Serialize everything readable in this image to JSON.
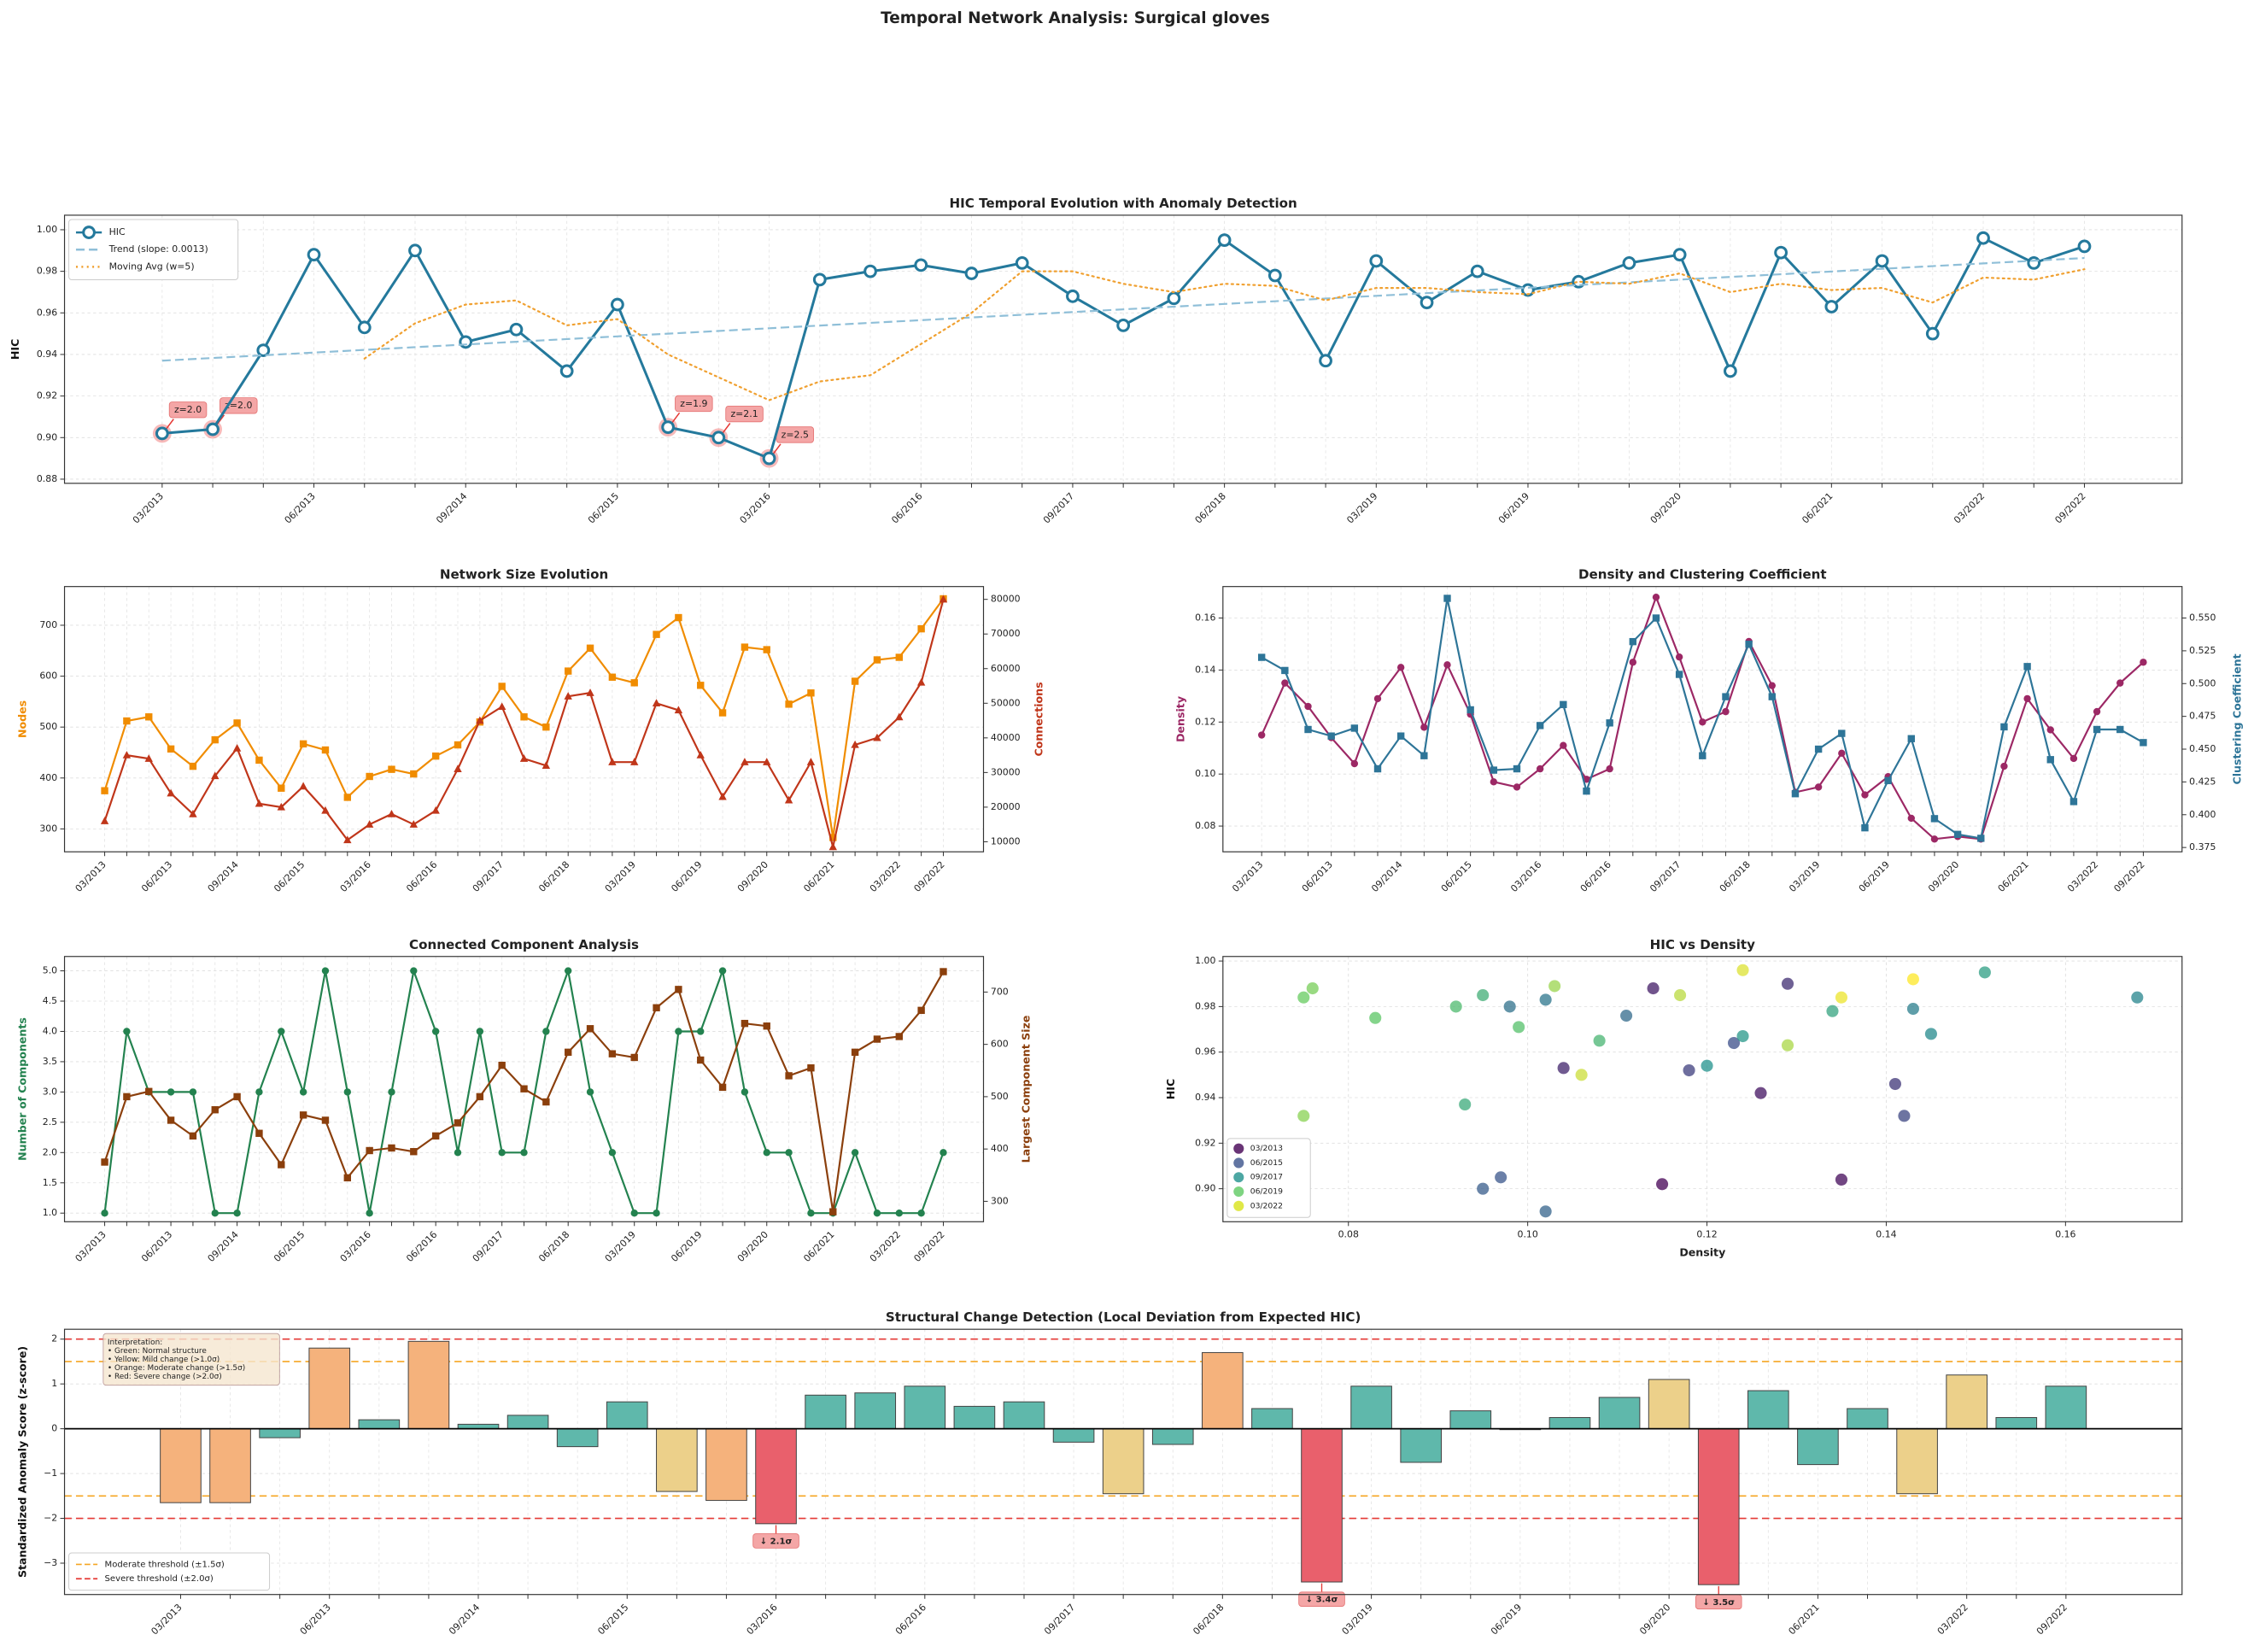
{
  "chart_data": [
    {
      "type": "line",
      "title": "HIC Temporal Evolution with Anomaly Detection",
      "suptitle": "Temporal Network Analysis: Surgical gloves",
      "ylabel": "HIC",
      "categories": [
        "03/2013",
        null,
        null,
        "06/2013",
        null,
        null,
        "09/2014",
        null,
        null,
        "06/2015",
        null,
        null,
        "03/2016",
        null,
        null,
        "06/2016",
        null,
        null,
        "09/2017",
        null,
        null,
        "06/2018",
        null,
        null,
        "03/2019",
        null,
        null,
        "06/2019",
        null,
        null,
        "09/2020",
        null,
        null,
        "06/2021",
        null,
        null,
        "03/2022",
        null,
        "09/2022"
      ],
      "ylim": [
        0.878,
        1.007
      ],
      "yticks": [
        0.88,
        {
          "value": 0.9,
          "label": "0.90"
        },
        0.92,
        0.94,
        0.96,
        0.98,
        {
          "value": 1.0,
          "label": "1.00"
        }
      ],
      "grid": true,
      "legend": "upper left",
      "series": [
        {
          "name": "HIC",
          "color": "#24799c",
          "linestyle": "solid",
          "marker": "hollow-circle",
          "values": [
            0.902,
            0.904,
            0.942,
            0.988,
            0.953,
            0.99,
            0.946,
            0.952,
            0.932,
            0.964,
            0.905,
            0.9,
            0.89,
            0.976,
            0.98,
            0.983,
            0.979,
            0.984,
            0.968,
            0.954,
            0.967,
            0.995,
            0.978,
            0.937,
            0.985,
            0.965,
            0.98,
            0.971,
            0.975,
            0.984,
            0.988,
            0.932,
            0.989,
            0.963,
            0.985,
            0.95,
            0.996,
            0.984,
            0.992
          ]
        },
        {
          "name": "Trend (slope: 0.0013)",
          "color": "#8fbfd8",
          "linestyle": "dashed",
          "marker": null,
          "values": [
            0.937,
            0.9383,
            0.9396,
            0.9409,
            0.9422,
            0.9435,
            0.9448,
            0.9461,
            0.9474,
            0.9487,
            0.95,
            0.9513,
            0.9526,
            0.9539,
            0.9552,
            0.9565,
            0.9578,
            0.9591,
            0.9604,
            0.9617,
            0.963,
            0.9643,
            0.9656,
            0.9669,
            0.9682,
            0.9695,
            0.9708,
            0.9721,
            0.9734,
            0.9747,
            0.976,
            0.9773,
            0.9786,
            0.9799,
            0.9812,
            0.9825,
            0.9838,
            0.9851,
            0.9864
          ]
        },
        {
          "name": "Moving Avg (w=5)",
          "color": "#f0a030",
          "linestyle": "dotted",
          "marker": null,
          "values": [
            null,
            null,
            null,
            null,
            0.938,
            0.955,
            0.964,
            0.966,
            0.954,
            0.957,
            0.94,
            0.929,
            0.918,
            0.927,
            0.93,
            0.945,
            0.96,
            0.98,
            0.98,
            0.974,
            0.97,
            0.974,
            0.973,
            0.966,
            0.972,
            0.972,
            0.97,
            0.969,
            0.975,
            0.974,
            0.979,
            0.97,
            0.974,
            0.971,
            0.972,
            0.965,
            0.977,
            0.976,
            0.981
          ]
        }
      ],
      "anomalies": {
        "indices": [
          0,
          1,
          10,
          11,
          12
        ],
        "labels": [
          "z=2.0",
          "z=2.0",
          "z=1.9",
          "z=2.1",
          "z=2.5"
        ]
      }
    },
    {
      "type": "line",
      "title": "Network Size Evolution",
      "ylabel": "Nodes",
      "y2label": "Connections",
      "categories": [
        "03/2013",
        null,
        null,
        "06/2013",
        null,
        null,
        "09/2014",
        null,
        null,
        "06/2015",
        null,
        null,
        "03/2016",
        null,
        null,
        "06/2016",
        null,
        null,
        "09/2017",
        null,
        null,
        "06/2018",
        null,
        null,
        "03/2019",
        null,
        null,
        "06/2019",
        null,
        null,
        "09/2020",
        null,
        null,
        "06/2021",
        null,
        null,
        "03/2022",
        null,
        "09/2022"
      ],
      "ylim": [
        255,
        776
      ],
      "yticks": [
        300,
        400,
        500,
        600,
        700
      ],
      "y2lim": [
        7100,
        83700
      ],
      "y2ticks": [
        10000,
        20000,
        30000,
        40000,
        50000,
        60000,
        70000,
        80000
      ],
      "grid": true,
      "series": [
        {
          "name": "Nodes",
          "color": "#f08c00",
          "linestyle": "solid",
          "marker": "square",
          "values": [
            375,
            512,
            520,
            457,
            423,
            475,
            508,
            435,
            380,
            467,
            455,
            362,
            403,
            417,
            408,
            443,
            465,
            510,
            580,
            520,
            500,
            610,
            655,
            598,
            587,
            682,
            715,
            582,
            528,
            657,
            652,
            545,
            567,
            283,
            590,
            632,
            637,
            693,
            752
          ]
        },
        {
          "name": "Connections",
          "color": "#c0361a",
          "linestyle": "solid",
          "marker": "triangle",
          "axis": "y2",
          "values": [
            16000,
            35000,
            34000,
            24000,
            18000,
            29000,
            37000,
            21000,
            20000,
            26000,
            19000,
            10500,
            15000,
            18000,
            15000,
            19000,
            31000,
            45000,
            49000,
            34000,
            32000,
            52000,
            53000,
            33000,
            33000,
            50000,
            48000,
            35000,
            23000,
            33000,
            33000,
            22000,
            33000,
            8500,
            38000,
            40000,
            46000,
            56000,
            80000
          ]
        }
      ]
    },
    {
      "type": "line",
      "title": "Density and Clustering Coefficient",
      "ylabel": "Density",
      "y2label": "Clustering Coefficient",
      "categories": [
        "03/2013",
        null,
        null,
        "06/2013",
        null,
        null,
        "09/2014",
        null,
        null,
        "06/2015",
        null,
        null,
        "03/2016",
        null,
        null,
        "06/2016",
        null,
        null,
        "09/2017",
        null,
        null,
        "06/2018",
        null,
        null,
        "03/2019",
        null,
        null,
        "06/2019",
        null,
        null,
        "09/2020",
        null,
        null,
        "06/2021",
        null,
        null,
        "03/2022",
        null,
        "09/2022"
      ],
      "ylim": [
        0.0701,
        0.1721
      ],
      "yticks": [
        0.08,
        {
          "value": 0.1,
          "label": "0.10"
        },
        0.12,
        0.14,
        0.16
      ],
      "y2lim": [
        0.3717,
        0.574
      ],
      "y2ticks": [
        0.375,
        {
          "value": 0.4,
          "label": "0.400"
        },
        0.425,
        {
          "value": 0.45,
          "label": "0.450"
        },
        0.475,
        {
          "value": 0.5,
          "label": "0.500"
        },
        0.525,
        {
          "value": 0.55,
          "label": "0.550"
        }
      ],
      "grid": true,
      "series": [
        {
          "name": "Density",
          "color": "#9c2865",
          "linestyle": "solid",
          "marker": "circle",
          "values": [
            0.115,
            0.135,
            0.126,
            0.114,
            0.104,
            0.129,
            0.141,
            0.118,
            0.142,
            0.123,
            0.097,
            0.095,
            0.102,
            0.111,
            0.098,
            0.102,
            0.143,
            0.168,
            0.145,
            0.12,
            0.124,
            0.151,
            0.134,
            0.093,
            0.095,
            0.108,
            0.092,
            0.099,
            0.083,
            0.075,
            0.076,
            0.075,
            0.103,
            0.129,
            0.117,
            0.106,
            0.124,
            0.135,
            0.143
          ]
        },
        {
          "name": "Clustering Coefficient",
          "color": "#2e7598",
          "linestyle": "solid",
          "marker": "square",
          "axis": "y2",
          "values": [
            0.52,
            0.51,
            0.465,
            0.46,
            0.466,
            0.435,
            0.46,
            0.445,
            0.565,
            0.48,
            0.434,
            0.435,
            0.468,
            0.484,
            0.418,
            0.47,
            0.532,
            0.55,
            0.507,
            0.445,
            0.49,
            0.53,
            0.49,
            0.416,
            0.45,
            0.462,
            0.39,
            0.426,
            0.458,
            0.397,
            0.385,
            0.382,
            0.467,
            0.513,
            0.442,
            0.41,
            0.465,
            0.465,
            0.455
          ]
        }
      ]
    },
    {
      "type": "line",
      "title": "Connected Component Analysis",
      "ylabel": "Number of Components",
      "y2label": "Largest Component Size",
      "categories": [
        "03/2013",
        null,
        null,
        "06/2013",
        null,
        null,
        "09/2014",
        null,
        null,
        "06/2015",
        null,
        null,
        "03/2016",
        null,
        null,
        "06/2016",
        null,
        null,
        "09/2017",
        null,
        null,
        "06/2018",
        null,
        null,
        "03/2019",
        null,
        null,
        "06/2019",
        null,
        null,
        "09/2020",
        null,
        null,
        "06/2021",
        null,
        null,
        "03/2022",
        null,
        "09/2022"
      ],
      "ylim": [
        0.858,
        5.237
      ],
      "yticks": [
        {
          "value": 1,
          "label": "1.0"
        },
        1.5,
        {
          "value": 2,
          "label": "2.0"
        },
        2.5,
        {
          "value": 3,
          "label": "3.0"
        },
        3.5,
        {
          "value": 4,
          "label": "4.0"
        },
        4.5,
        {
          "value": 5,
          "label": "5.0"
        }
      ],
      "y2lim": [
        261,
        768
      ],
      "y2ticks": [
        300,
        400,
        500,
        600,
        700
      ],
      "grid": true,
      "series": [
        {
          "name": "Number of Components",
          "color": "#23824f",
          "linestyle": "solid",
          "marker": "circle",
          "values": [
            1,
            4,
            3,
            3,
            3,
            1,
            1,
            3,
            4,
            3,
            5,
            3,
            1,
            3,
            5,
            4,
            2,
            4,
            2,
            2,
            4,
            5,
            3,
            2,
            1,
            1,
            4,
            4,
            5,
            3,
            2,
            2,
            1,
            1,
            2,
            1,
            1,
            1,
            2
          ]
        },
        {
          "name": "Largest Component Size",
          "color": "#8b3f0c",
          "linestyle": "solid",
          "marker": "square",
          "axis": "y2",
          "values": [
            375,
            500,
            510,
            455,
            425,
            475,
            500,
            430,
            370,
            465,
            455,
            345,
            397,
            402,
            395,
            425,
            450,
            500,
            560,
            515,
            490,
            585,
            630,
            582,
            575,
            670,
            705,
            570,
            518,
            640,
            635,
            540,
            555,
            280,
            585,
            610,
            615,
            665,
            739
          ]
        }
      ]
    },
    {
      "type": "scatter",
      "title": "HIC vs Density",
      "xlabel": "Density",
      "ylabel": "HIC",
      "colormap": "viridis",
      "legend": "lower left",
      "grid": true,
      "xlim": [
        0.066,
        0.173
      ],
      "xticks": [
        0.08,
        {
          "value": 0.1,
          "label": "0.10"
        },
        0.12,
        0.14,
        0.16
      ],
      "ylim": [
        0.8855,
        1.002
      ],
      "yticks": [
        {
          "value": 0.9,
          "label": "0.90"
        },
        0.92,
        0.94,
        0.96,
        0.98,
        {
          "value": 1.0,
          "label": "1.00"
        }
      ],
      "x": [
        0.115,
        0.135,
        0.126,
        0.114,
        0.104,
        0.129,
        0.141,
        0.118,
        0.142,
        0.123,
        0.097,
        0.095,
        0.102,
        0.111,
        0.098,
        0.102,
        0.143,
        0.168,
        0.145,
        0.12,
        0.124,
        0.151,
        0.134,
        0.093,
        0.095,
        0.108,
        0.092,
        0.099,
        0.083,
        0.075,
        0.076,
        0.075,
        0.103,
        0.129,
        0.117,
        0.106,
        0.124,
        0.135,
        0.143
      ],
      "y": [
        0.902,
        0.904,
        0.942,
        0.988,
        0.953,
        0.99,
        0.946,
        0.952,
        0.932,
        0.964,
        0.905,
        0.9,
        0.89,
        0.976,
        0.98,
        0.983,
        0.979,
        0.984,
        0.968,
        0.954,
        0.967,
        0.995,
        0.978,
        0.937,
        0.985,
        0.965,
        0.98,
        0.971,
        0.975,
        0.984,
        0.988,
        0.932,
        0.989,
        0.963,
        0.985,
        0.95,
        0.996,
        0.984,
        0.992
      ],
      "legend_entries": [
        {
          "label": "03/2013",
          "color": "#440154"
        },
        {
          "label": "06/2015",
          "color": "#3b528b"
        },
        {
          "label": "09/2017",
          "color": "#21918c"
        },
        {
          "label": "06/2019",
          "color": "#5ec962"
        },
        {
          "label": "03/2022",
          "color": "#d8e219"
        }
      ]
    },
    {
      "type": "bar",
      "title": "Structural Change Detection (Local Deviation from Expected HIC)",
      "ylabel": "Standardized Anomaly Score (z-score)",
      "legend": "lower left",
      "grid": true,
      "categories": [
        "03/2013",
        null,
        null,
        "06/2013",
        null,
        null,
        "09/2014",
        null,
        null,
        "06/2015",
        null,
        null,
        "03/2016",
        null,
        null,
        "06/2016",
        null,
        null,
        "09/2017",
        null,
        null,
        "06/2018",
        null,
        null,
        "03/2019",
        null,
        null,
        "06/2019",
        null,
        null,
        "09/2020",
        null,
        null,
        "06/2021",
        null,
        null,
        "03/2022",
        null,
        "09/2022"
      ],
      "ylim": [
        -3.7,
        2.22
      ],
      "yticks": [
        {
          "value": -3,
          "label": "−3"
        },
        {
          "value": -2,
          "label": "−2"
        },
        {
          "value": -1,
          "label": "−1"
        },
        0,
        1,
        2
      ],
      "values": [
        -1.65,
        -1.65,
        -0.2,
        1.8,
        0.2,
        1.95,
        0.1,
        0.3,
        -0.4,
        0.6,
        -1.4,
        -1.6,
        -2.12,
        0.75,
        0.8,
        0.95,
        0.5,
        0.6,
        -0.3,
        -1.45,
        -0.35,
        1.7,
        0.45,
        -3.42,
        0.95,
        -0.75,
        0.4,
        -0.02,
        0.25,
        0.7,
        1.1,
        -3.48,
        0.85,
        -0.8,
        0.45,
        -1.45,
        1.2,
        0.25,
        0.95
      ],
      "colors": [
        "#f5b27c",
        "#f5b27c",
        "#5fb8ab",
        "#f5b27c",
        "#5fb8ab",
        "#f5b27c",
        "#5fb8ab",
        "#5fb8ab",
        "#5fb8ab",
        "#5fb8ab",
        "#ecd08a",
        "#f5b27c",
        "#e9606c",
        "#5fb8ab",
        "#5fb8ab",
        "#5fb8ab",
        "#5fb8ab",
        "#5fb8ab",
        "#5fb8ab",
        "#ecd08a",
        "#5fb8ab",
        "#f5b27c",
        "#5fb8ab",
        "#e9606c",
        "#5fb8ab",
        "#5fb8ab",
        "#5fb8ab",
        "#5fb8ab",
        "#5fb8ab",
        "#5fb8ab",
        "#ecd08a",
        "#e9606c",
        "#5fb8ab",
        "#5fb8ab",
        "#5fb8ab",
        "#ecd08a",
        "#ecd08a",
        "#5fb8ab",
        "#5fb8ab"
      ],
      "thresholds": [
        {
          "name": "Moderate threshold (±1.5σ)",
          "color": "#f5a623",
          "values": [
            1.5,
            -1.5
          ]
        },
        {
          "name": "Severe threshold (±2.0σ)",
          "color": "#e53935",
          "values": [
            2,
            -2
          ]
        }
      ],
      "annotations": {
        "indices": [
          12,
          23,
          31
        ],
        "labels": [
          "↓ 2.1σ",
          "↓ 3.4σ",
          "↓ 3.5σ"
        ]
      },
      "note": [
        "Interpretation:",
        "• Green: Normal structure",
        "• Yellow: Mild change (>1.0σ)",
        "• Orange: Moderate change (>1.5σ)",
        "• Red: Severe change (>2.0σ)"
      ]
    }
  ]
}
